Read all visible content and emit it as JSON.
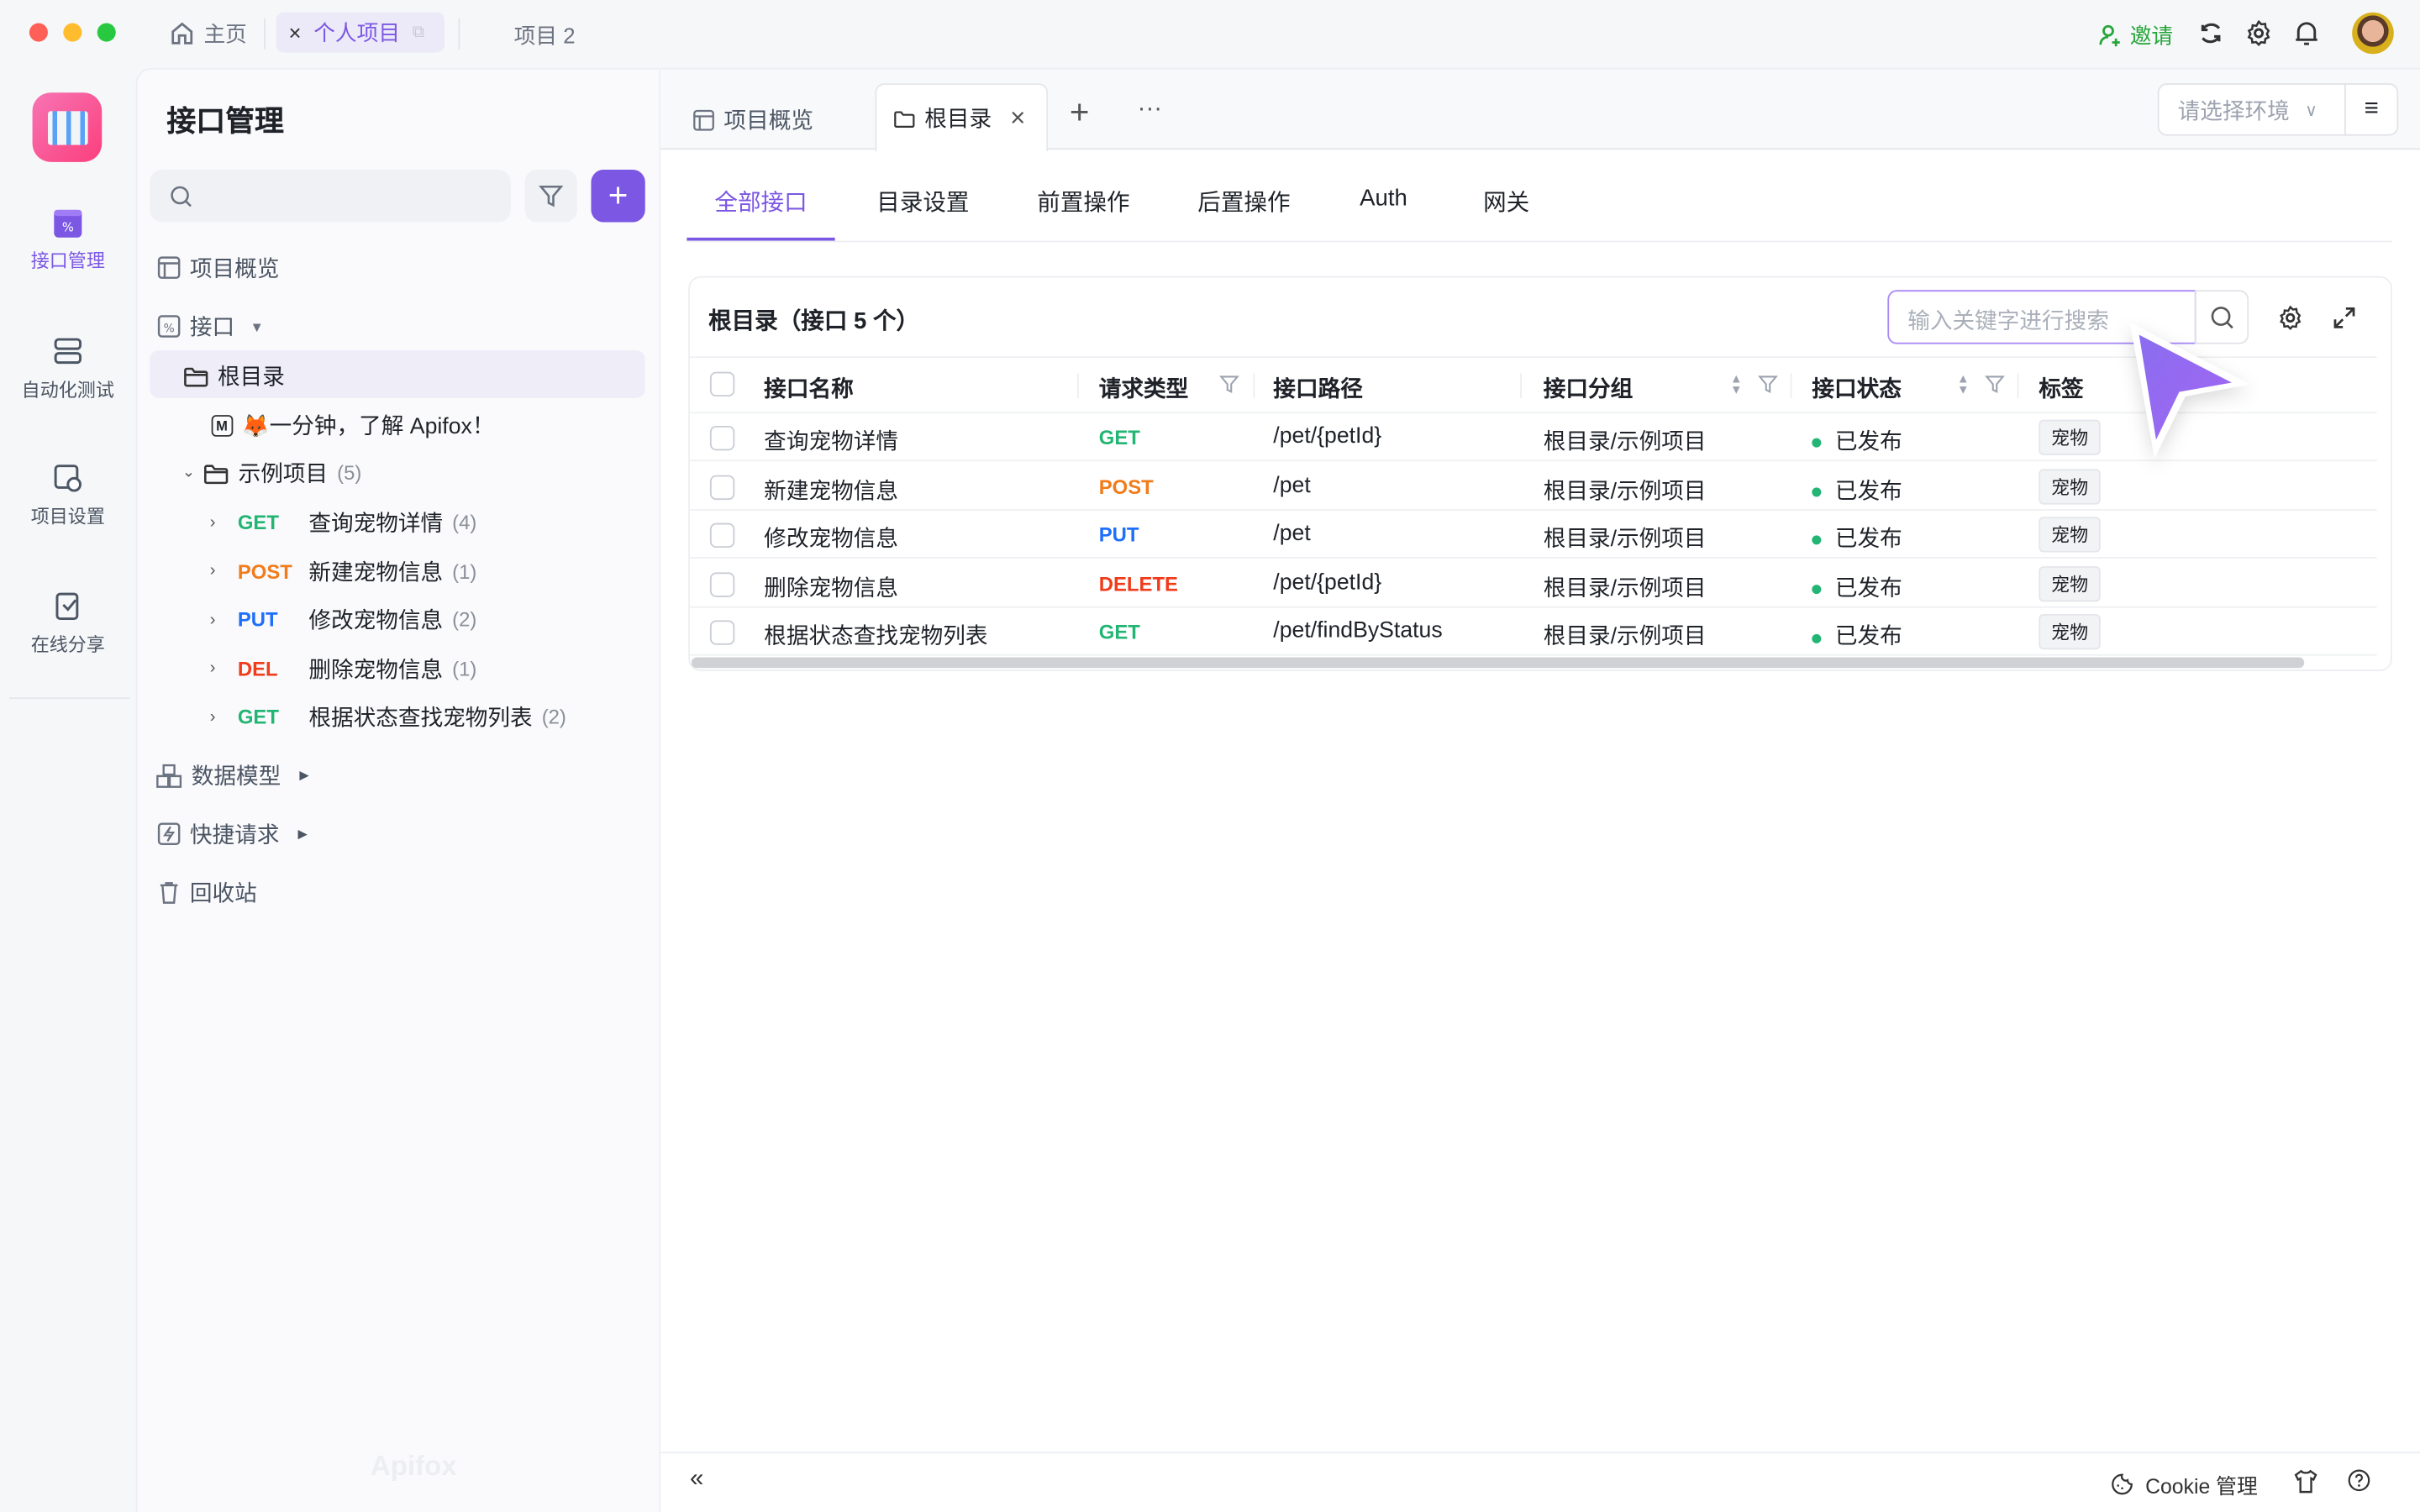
{
  "titlebar": {
    "tabs": [
      {
        "label": "主页",
        "icon": "home-icon"
      },
      {
        "label": "个人项目",
        "active": true
      },
      {
        "label": "项目 2"
      }
    ],
    "invite": "邀请"
  },
  "rail": {
    "items": [
      {
        "label": "接口管理",
        "active": true
      },
      {
        "label": "自动化测试"
      },
      {
        "label": "项目设置"
      },
      {
        "label": "在线分享"
      }
    ]
  },
  "sidebar": {
    "title": "接口管理",
    "nav": {
      "overview": "项目概览",
      "api": "接口",
      "root": "根目录",
      "doc": "🦊一分钟，了解 Apifox！",
      "folder": "示例项目",
      "folder_count": "(5)"
    },
    "endpoints": [
      {
        "method": "GET",
        "name": "查询宠物详情",
        "count": "(4)"
      },
      {
        "method": "POST",
        "name": "新建宠物信息",
        "count": "(1)"
      },
      {
        "method": "PUT",
        "name": "修改宠物信息",
        "count": "(2)"
      },
      {
        "method": "DEL",
        "name": "删除宠物信息",
        "count": "(1)"
      },
      {
        "method": "GET",
        "name": "根据状态查找宠物列表",
        "count": "(2)"
      }
    ],
    "models": "数据模型",
    "quick": "快捷请求",
    "trash": "回收站",
    "watermark": "Apifox"
  },
  "tabs": {
    "items": [
      {
        "label": "项目概览"
      },
      {
        "label": "根目录",
        "active": true
      }
    ],
    "env_placeholder": "请选择环境"
  },
  "subtabs": [
    "全部接口",
    "目录设置",
    "前置操作",
    "后置操作",
    "Auth",
    "网关"
  ],
  "table": {
    "title": "根目录（接口 5 个）",
    "search_placeholder": "输入关键字进行搜索",
    "columns": [
      "接口名称",
      "请求类型",
      "接口路径",
      "接口分组",
      "接口状态",
      "标签"
    ],
    "rows": [
      {
        "name": "查询宠物详情",
        "method": "GET",
        "path": "/pet/{petId}",
        "group": "根目录/示例项目",
        "status": "已发布",
        "tag": "宠物"
      },
      {
        "name": "新建宠物信息",
        "method": "POST",
        "path": "/pet",
        "group": "根目录/示例项目",
        "status": "已发布",
        "tag": "宠物"
      },
      {
        "name": "修改宠物信息",
        "method": "PUT",
        "path": "/pet",
        "group": "根目录/示例项目",
        "status": "已发布",
        "tag": "宠物"
      },
      {
        "name": "删除宠物信息",
        "method": "DELETE",
        "path": "/pet/{petId}",
        "group": "根目录/示例项目",
        "status": "已发布",
        "tag": "宠物"
      },
      {
        "name": "根据状态查找宠物列表",
        "method": "GET",
        "path": "/pet/findByStatus",
        "group": "根目录/示例项目",
        "status": "已发布",
        "tag": "宠物"
      }
    ]
  },
  "footer": {
    "cookie": "Cookie 管理"
  },
  "colors": {
    "accent": "#7b57e4",
    "get": "#22b573",
    "post": "#f07c1b",
    "put": "#1e6ffb",
    "delete": "#f03c1b",
    "invite": "#26a63a"
  }
}
